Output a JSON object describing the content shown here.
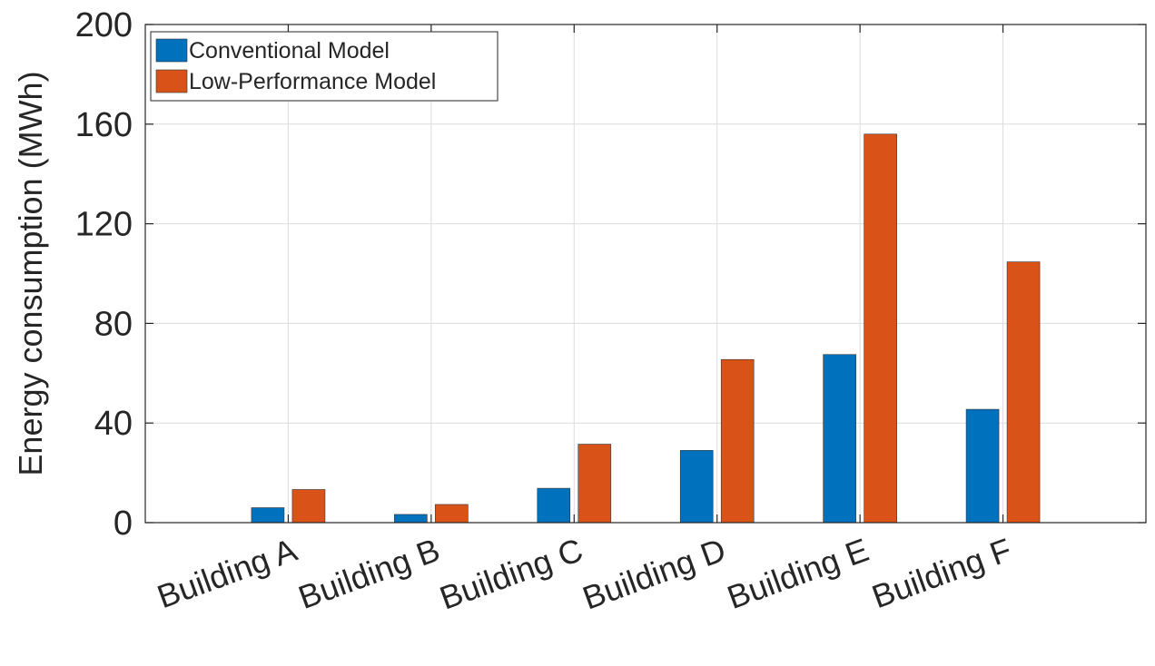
{
  "chart_data": {
    "type": "bar",
    "title": "",
    "xlabel": "",
    "ylabel": "Energy consumption (MWh)",
    "ylim": [
      0,
      200
    ],
    "yticks": [
      0,
      40,
      80,
      120,
      160,
      200
    ],
    "categories": [
      "Building A",
      "Building B",
      "Building C",
      "Building D",
      "Building E",
      "Building F"
    ],
    "series": [
      {
        "name": "Conventional Model",
        "color": "#0072BD",
        "values": [
          6,
          3.3,
          13.8,
          29,
          67.5,
          45.5
        ]
      },
      {
        "name": "Low-Performance Model",
        "color": "#D95319",
        "values": [
          13.3,
          7.3,
          31.5,
          65.5,
          156,
          104.7
        ]
      }
    ],
    "grid": true,
    "legend_position": "top-left"
  }
}
